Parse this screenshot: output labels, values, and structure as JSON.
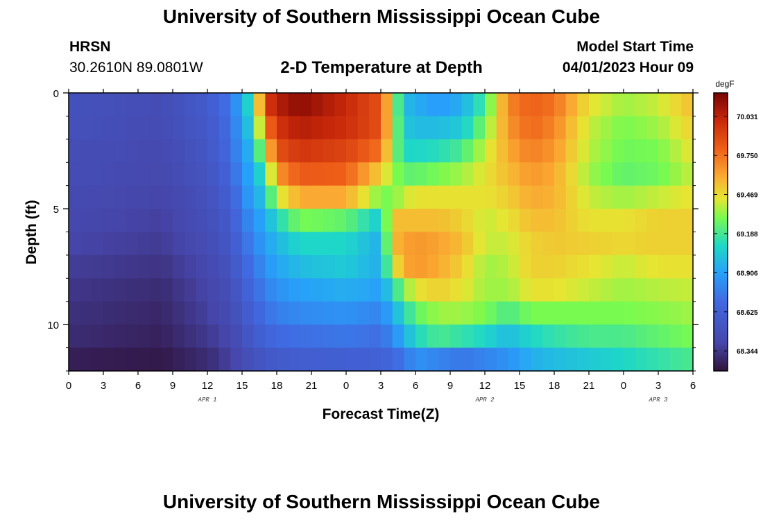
{
  "header": {
    "title": "University of Southern Mississippi Ocean Cube",
    "station": "HRSN",
    "coords": "30.2610N  89.0801W",
    "subtitle": "2-D Temperature at Depth",
    "model_start_label": "Model Start Time",
    "model_start_value": "04/01/2023 Hour 09"
  },
  "footer": {
    "title": "University of Southern Mississippi Ocean Cube"
  },
  "chart_data": {
    "type": "heatmap",
    "title": "2-D Temperature at Depth",
    "xlabel": "Forecast Time(Z)",
    "ylabel": "Depth (ft)",
    "x_hours": [
      0,
      54
    ],
    "x_tick_labels": [
      "0",
      "3",
      "6",
      "9",
      "12",
      "15",
      "18",
      "21",
      "0",
      "3",
      "6",
      "9",
      "12",
      "15",
      "18",
      "21",
      "0",
      "3",
      "6"
    ],
    "date_labels": [
      {
        "label": "APR 1",
        "hour": 12
      },
      {
        "label": "APR 2",
        "hour": 36
      },
      {
        "label": "APR 3",
        "hour": 51
      }
    ],
    "y_range_ft": [
      0,
      12
    ],
    "y_major_ticks": [
      0,
      5,
      10
    ],
    "colorbar_unit": "degF",
    "colorbar_range": [
      68.2,
      70.2
    ],
    "colorbar_ticks": [
      68.344,
      68.625,
      68.906,
      69.188,
      69.469,
      69.75,
      70.031
    ],
    "colorbar_tick_labels": [
      "68.344",
      "68.625",
      "68.906",
      "69.188",
      "69.469",
      "69.750",
      "70.031"
    ],
    "depth_levels_ft": [
      0.5,
      1.5,
      2.5,
      3.5,
      4.5,
      5.5,
      6.5,
      7.5,
      8.5,
      9.5,
      10.5,
      11.5
    ],
    "time_keys_hours": [
      0,
      4,
      8,
      12,
      14,
      15,
      16,
      17,
      18,
      20,
      24,
      27,
      28,
      29,
      30,
      32,
      34,
      36,
      38,
      40,
      42,
      45,
      48,
      51,
      54
    ],
    "temperature_degF": [
      [
        68.5,
        68.48,
        68.46,
        68.58,
        68.75,
        68.95,
        69.2,
        69.9,
        70.05,
        70.15,
        70.0,
        69.85,
        69.4,
        69.0,
        68.95,
        68.88,
        68.95,
        69.2,
        69.7,
        69.8,
        69.75,
        69.45,
        69.35,
        69.4,
        69.55
      ],
      [
        68.49,
        68.47,
        68.45,
        68.56,
        68.72,
        68.92,
        69.1,
        69.7,
        69.95,
        70.05,
        69.98,
        69.85,
        69.4,
        69.05,
        69.0,
        69.0,
        69.05,
        69.3,
        69.65,
        69.78,
        69.7,
        69.4,
        69.3,
        69.35,
        69.5
      ],
      [
        68.47,
        68.45,
        68.43,
        68.54,
        68.7,
        68.88,
        69.0,
        69.45,
        69.85,
        69.95,
        69.9,
        69.75,
        69.35,
        69.1,
        69.1,
        69.12,
        69.2,
        69.4,
        69.6,
        69.72,
        69.65,
        69.38,
        69.28,
        69.3,
        69.45
      ],
      [
        68.46,
        68.44,
        68.42,
        68.52,
        68.66,
        68.85,
        68.95,
        69.2,
        69.65,
        69.82,
        69.8,
        69.5,
        69.35,
        69.25,
        69.25,
        69.3,
        69.35,
        69.45,
        69.55,
        69.65,
        69.6,
        69.35,
        69.25,
        69.28,
        69.4
      ],
      [
        68.44,
        68.42,
        68.4,
        68.5,
        68.62,
        68.8,
        68.92,
        69.05,
        69.4,
        69.6,
        69.6,
        69.3,
        69.3,
        69.4,
        69.45,
        69.45,
        69.45,
        69.45,
        69.5,
        69.6,
        69.58,
        69.4,
        69.35,
        69.4,
        69.45
      ],
      [
        68.42,
        68.4,
        68.38,
        68.48,
        68.58,
        68.75,
        68.85,
        68.95,
        69.1,
        69.3,
        69.25,
        69.05,
        69.55,
        69.55,
        69.55,
        69.55,
        69.5,
        69.4,
        69.45,
        69.55,
        69.55,
        69.45,
        69.45,
        69.5,
        69.5
      ],
      [
        68.4,
        68.38,
        68.36,
        68.45,
        68.55,
        68.7,
        68.8,
        68.9,
        68.98,
        69.1,
        69.1,
        68.95,
        69.55,
        69.62,
        69.65,
        69.62,
        69.55,
        69.4,
        69.4,
        69.5,
        69.52,
        69.5,
        69.48,
        69.5,
        69.5
      ],
      [
        68.37,
        68.35,
        68.33,
        68.42,
        68.52,
        68.65,
        68.75,
        68.85,
        68.92,
        69.0,
        69.05,
        68.95,
        69.4,
        69.6,
        69.65,
        69.6,
        69.5,
        69.35,
        69.38,
        69.5,
        69.5,
        69.45,
        69.4,
        69.45,
        69.45
      ],
      [
        68.34,
        68.32,
        68.3,
        68.4,
        68.48,
        68.6,
        68.7,
        68.78,
        68.85,
        68.9,
        68.95,
        68.9,
        69.1,
        69.3,
        69.45,
        69.5,
        69.45,
        69.35,
        69.35,
        69.45,
        69.45,
        69.4,
        69.35,
        69.38,
        69.4
      ],
      [
        68.32,
        68.3,
        68.28,
        68.38,
        68.45,
        68.55,
        68.65,
        68.72,
        68.78,
        68.82,
        68.85,
        68.8,
        68.95,
        69.1,
        69.25,
        69.35,
        69.35,
        69.3,
        69.2,
        69.3,
        69.3,
        69.3,
        69.3,
        69.32,
        69.35
      ],
      [
        68.3,
        68.28,
        68.26,
        68.35,
        68.42,
        68.5,
        68.58,
        68.65,
        68.7,
        68.72,
        68.75,
        68.72,
        68.82,
        68.95,
        69.1,
        69.2,
        69.15,
        69.1,
        69.0,
        69.1,
        69.15,
        69.2,
        69.2,
        69.25,
        69.3
      ],
      [
        68.25,
        68.24,
        68.23,
        68.3,
        68.38,
        68.45,
        68.5,
        68.55,
        68.58,
        68.6,
        68.62,
        68.63,
        68.68,
        68.75,
        68.85,
        68.8,
        68.75,
        68.8,
        68.85,
        68.95,
        69.0,
        69.05,
        69.1,
        69.15,
        69.2
      ]
    ]
  }
}
